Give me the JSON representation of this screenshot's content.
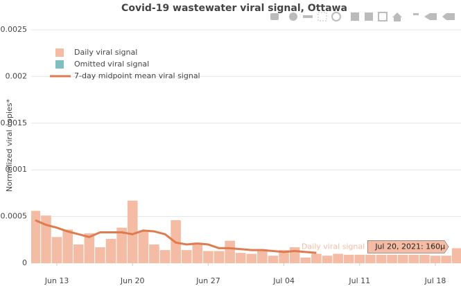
{
  "chart_data": {
    "type": "bar",
    "title": "Covid-19 wastewater viral signal, Ottawa",
    "ylabel": "Normalized viral copies*",
    "x": [
      "2021-06-11",
      "2021-06-12",
      "2021-06-13",
      "2021-06-14",
      "2021-06-15",
      "2021-06-16",
      "2021-06-17",
      "2021-06-18",
      "2021-06-19",
      "2021-06-20",
      "2021-06-21",
      "2021-06-22",
      "2021-06-23",
      "2021-06-24",
      "2021-06-25",
      "2021-06-26",
      "2021-06-27",
      "2021-06-28",
      "2021-06-29",
      "2021-06-30",
      "2021-07-01",
      "2021-07-02",
      "2021-07-03",
      "2021-07-04",
      "2021-07-05",
      "2021-07-06",
      "2021-07-07",
      "2021-07-08",
      "2021-07-09",
      "2021-07-10",
      "2021-07-11",
      "2021-07-12",
      "2021-07-13",
      "2021-07-14",
      "2021-07-15",
      "2021-07-16",
      "2021-07-17",
      "2021-07-18",
      "2021-07-19",
      "2021-07-20"
    ],
    "series": [
      {
        "name": "Daily viral signal",
        "kind": "bar",
        "color": "#f4bca4",
        "values": [
          0.00056,
          0.00051,
          0.00028,
          0.00036,
          0.0002,
          0.00032,
          0.00017,
          0.00026,
          0.00038,
          0.00067,
          0.00034,
          0.0002,
          0.00014,
          0.00046,
          0.00014,
          0.00022,
          0.00013,
          0.00013,
          0.00024,
          0.00011,
          0.0001,
          0.00015,
          8e-05,
          0.00014,
          0.00017,
          6e-05,
          0.0001,
          8e-05,
          0.0001,
          9e-05,
          9e-05,
          9e-05,
          9e-05,
          9e-05,
          9e-05,
          9e-05,
          9e-05,
          8e-05,
          8e-05,
          0.00016
        ]
      },
      {
        "name": "Omitted viral signal",
        "kind": "bar",
        "color": "#7fbfbf",
        "values": [
          null,
          null,
          null,
          null,
          null,
          null,
          null,
          null,
          null,
          null,
          null,
          null,
          null,
          null,
          null,
          null,
          null,
          null,
          null,
          null,
          null,
          null,
          null,
          null,
          null,
          null,
          null,
          null,
          null,
          null,
          null,
          null,
          null,
          null,
          null,
          null,
          null,
          null,
          null,
          null
        ]
      },
      {
        "name": "7-day midpoint mean viral signal",
        "kind": "line",
        "color": "#e07a4f",
        "values": [
          0.00046,
          0.00041,
          0.00038,
          0.00034,
          0.00031,
          0.00028,
          0.00033,
          0.00033,
          0.00033,
          0.00031,
          0.00035,
          0.00034,
          0.00031,
          0.00022,
          0.0002,
          0.00021,
          0.0002,
          0.00016,
          0.00016,
          0.00015,
          0.00014,
          0.00014,
          0.00013,
          0.00012,
          0.00013,
          0.00012,
          0.00011,
          null,
          null,
          null,
          null,
          null,
          null,
          null,
          null,
          null,
          null,
          null,
          null,
          null
        ]
      }
    ],
    "xlim": [
      "2021-06-10T15:00:00Z",
      "2021-07-20T09:00:00Z"
    ],
    "xticks": [
      {
        "value": "2021-06-13",
        "label": "Jun 13"
      },
      {
        "value": "2021-06-20",
        "label": "Jun 20"
      },
      {
        "value": "2021-06-27",
        "label": "Jun 27"
      },
      {
        "value": "2021-07-04",
        "label": "Jul 04"
      },
      {
        "value": "2021-07-11",
        "label": "Jul 11"
      },
      {
        "value": "2021-07-18",
        "label": "Jul 18"
      }
    ],
    "ylim": [
      0,
      0.0025
    ],
    "yticks": [
      0,
      0.0005,
      0.001,
      0.0015,
      0.002,
      0.0025
    ],
    "grid": true,
    "legend": "top left",
    "hover": {
      "series_label": "Daily viral signal",
      "text": "Jul 20, 2021: 160µ",
      "x": "2021-07-20",
      "series": 0
    }
  }
}
